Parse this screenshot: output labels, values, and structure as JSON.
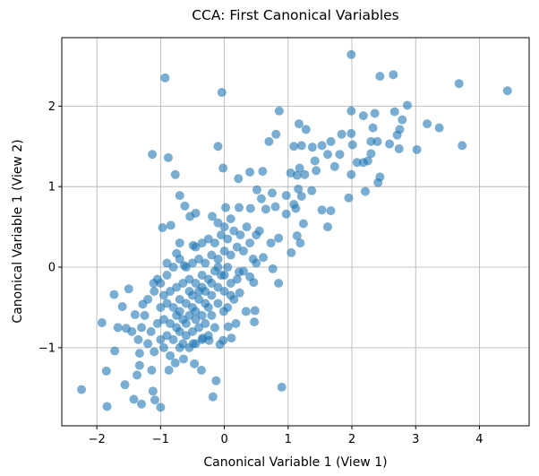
{
  "chart_data": {
    "type": "scatter",
    "title": "CCA: First Canonical Variables",
    "xlabel": "Canonical Variable 1 (View 1)",
    "ylabel": "Canonical Variable 1 (View 2)",
    "xlim": [
      -2.55,
      4.78
    ],
    "ylim": [
      -1.97,
      2.85
    ],
    "xticks": [
      -2,
      -1,
      0,
      1,
      2,
      3,
      4
    ],
    "yticks": [
      -1,
      0,
      1,
      2
    ],
    "grid": true,
    "marker_color": "#1f77b4",
    "marker_alpha": 0.6,
    "points": [
      [
        1.99,
        2.64
      ],
      [
        -0.93,
        2.35
      ],
      [
        -0.04,
        2.17
      ],
      [
        2.44,
        2.37
      ],
      [
        2.65,
        2.39
      ],
      [
        3.68,
        2.28
      ],
      [
        4.44,
        2.19
      ],
      [
        2.87,
        2.01
      ],
      [
        0.86,
        1.94
      ],
      [
        1.99,
        1.94
      ],
      [
        2.18,
        1.88
      ],
      [
        2.36,
        1.91
      ],
      [
        2.67,
        1.93
      ],
      [
        2.79,
        1.83
      ],
      [
        3.18,
        1.78
      ],
      [
        3.37,
        1.73
      ],
      [
        3.73,
        1.51
      ],
      [
        3.02,
        1.46
      ],
      [
        1.17,
        1.78
      ],
      [
        1.28,
        1.71
      ],
      [
        0.81,
        1.65
      ],
      [
        0.7,
        1.56
      ],
      [
        -0.1,
        1.5
      ],
      [
        -1.13,
        1.4
      ],
      [
        -0.88,
        1.36
      ],
      [
        -0.02,
        1.23
      ],
      [
        -0.77,
        1.15
      ],
      [
        0.22,
        1.1
      ],
      [
        0.4,
        1.18
      ],
      [
        0.6,
        1.19
      ],
      [
        1.09,
        1.5
      ],
      [
        1.21,
        1.51
      ],
      [
        1.38,
        1.49
      ],
      [
        1.53,
        1.51
      ],
      [
        1.67,
        1.56
      ],
      [
        1.84,
        1.65
      ],
      [
        1.99,
        1.66
      ],
      [
        2.01,
        1.52
      ],
      [
        2.33,
        1.73
      ],
      [
        2.3,
        1.56
      ],
      [
        2.4,
        1.56
      ],
      [
        2.59,
        1.53
      ],
      [
        2.74,
        1.47
      ],
      [
        2.71,
        1.64
      ],
      [
        2.75,
        1.71
      ],
      [
        1.62,
        1.4
      ],
      [
        1.81,
        1.4
      ],
      [
        1.73,
        1.25
      ],
      [
        1.42,
        1.32
      ],
      [
        1.44,
        1.2
      ],
      [
        2.08,
        1.3
      ],
      [
        2.18,
        1.3
      ],
      [
        2.25,
        1.32
      ],
      [
        2.3,
        1.41
      ],
      [
        1.99,
        1.15
      ],
      [
        2.44,
        1.12
      ],
      [
        2.41,
        1.05
      ],
      [
        2.21,
        0.94
      ],
      [
        1.95,
        0.86
      ],
      [
        1.18,
        1.23
      ],
      [
        1.04,
        1.17
      ],
      [
        1.14,
        1.14
      ],
      [
        1.26,
        1.15
      ],
      [
        1.16,
        0.97
      ],
      [
        1.21,
        0.88
      ],
      [
        1.37,
        0.95
      ],
      [
        0.97,
        0.89
      ],
      [
        0.75,
        0.92
      ],
      [
        0.51,
        0.96
      ],
      [
        0.58,
        0.85
      ],
      [
        0.8,
        0.75
      ],
      [
        1.09,
        0.78
      ],
      [
        1.12,
        0.73
      ],
      [
        0.97,
        0.66
      ],
      [
        1.53,
        0.71
      ],
      [
        1.67,
        0.7
      ],
      [
        1.62,
        0.5
      ],
      [
        1.24,
        0.54
      ],
      [
        1.14,
        0.39
      ],
      [
        1.19,
        0.3
      ],
      [
        1.05,
        0.18
      ],
      [
        0.85,
        0.36
      ],
      [
        0.73,
        0.3
      ],
      [
        0.61,
        0.12
      ],
      [
        0.76,
        -0.02
      ],
      [
        0.85,
        -0.2
      ],
      [
        0.46,
        -0.19
      ],
      [
        -0.7,
        0.89
      ],
      [
        -0.62,
        0.76
      ],
      [
        -0.54,
        0.63
      ],
      [
        -0.45,
        0.67
      ],
      [
        -0.97,
        0.49
      ],
      [
        -0.84,
        0.52
      ],
      [
        -0.19,
        0.63
      ],
      [
        0.02,
        0.74
      ],
      [
        0.23,
        0.74
      ],
      [
        0.41,
        0.73
      ],
      [
        0.65,
        0.72
      ],
      [
        -0.7,
        0.3
      ],
      [
        -0.49,
        0.27
      ],
      [
        -0.75,
        0.17
      ],
      [
        -0.63,
        0.02
      ],
      [
        -1.5,
        -0.27
      ],
      [
        -1.73,
        -0.34
      ],
      [
        -1.11,
        -0.2
      ],
      [
        -1.6,
        -0.49
      ],
      [
        -1.92,
        -0.69
      ],
      [
        -1.67,
        -0.75
      ],
      [
        -1.54,
        -0.76
      ],
      [
        -1.28,
        -0.46
      ],
      [
        -1.4,
        -0.59
      ],
      [
        -1.72,
        -1.04
      ],
      [
        -1.33,
        -1.07
      ],
      [
        -1.85,
        -1.29
      ],
      [
        -1.37,
        -1.34
      ],
      [
        -1.33,
        -1.22
      ],
      [
        -1.14,
        -1.28
      ],
      [
        -1.56,
        -1.46
      ],
      [
        -2.24,
        -1.52
      ],
      [
        -1.84,
        -1.73
      ],
      [
        -1.42,
        -1.64
      ],
      [
        -1.3,
        -1.7
      ],
      [
        -1.12,
        -1.54
      ],
      [
        -1.09,
        -1.65
      ],
      [
        -1.0,
        -1.74
      ],
      [
        -0.87,
        -1.28
      ],
      [
        -0.77,
        -1.19
      ],
      [
        -0.64,
        -1.14
      ],
      [
        -0.47,
        -1.2
      ],
      [
        -0.36,
        -1.28
      ],
      [
        -0.13,
        -1.41
      ],
      [
        -0.18,
        -1.61
      ],
      [
        0.9,
        -1.49
      ],
      [
        0.34,
        -0.55
      ],
      [
        0.48,
        -0.54
      ],
      [
        0.47,
        -0.68
      ],
      [
        0.18,
        -0.7
      ],
      [
        0.11,
        -0.88
      ],
      [
        -0.02,
        -0.91
      ],
      [
        -0.07,
        -0.96
      ],
      [
        0.06,
        -0.74
      ],
      [
        -0.01,
        -0.55
      ],
      [
        0.24,
        -0.32
      ],
      [
        0.1,
        -0.35
      ],
      [
        0.4,
        -0.12
      ],
      [
        0.23,
        -0.06
      ],
      [
        0.5,
        0.05
      ],
      [
        -0.24,
        -0.91
      ],
      [
        -0.34,
        -0.88
      ],
      [
        -0.49,
        -0.95
      ],
      [
        -1.0,
        -0.9
      ],
      [
        -0.9,
        -0.85
      ],
      [
        -0.8,
        -0.9
      ],
      [
        -0.7,
        -0.8
      ],
      [
        -0.6,
        -0.85
      ],
      [
        -0.5,
        -0.8
      ],
      [
        -0.4,
        -0.75
      ],
      [
        -0.3,
        -0.7
      ],
      [
        -1.05,
        -0.7
      ],
      [
        -0.95,
        -0.65
      ],
      [
        -0.85,
        -0.7
      ],
      [
        -0.75,
        -0.6
      ],
      [
        -0.65,
        -0.65
      ],
      [
        -0.55,
        -0.6
      ],
      [
        -0.45,
        -0.55
      ],
      [
        -0.35,
        -0.6
      ],
      [
        -0.25,
        -0.5
      ],
      [
        -1.0,
        -0.5
      ],
      [
        -0.9,
        -0.45
      ],
      [
        -0.8,
        -0.5
      ],
      [
        -0.7,
        -0.4
      ],
      [
        -0.6,
        -0.45
      ],
      [
        -0.5,
        -0.35
      ],
      [
        -0.4,
        -0.4
      ],
      [
        -0.3,
        -0.3
      ],
      [
        -0.2,
        -0.35
      ],
      [
        -0.1,
        -0.25
      ],
      [
        -0.85,
        -0.3
      ],
      [
        -0.75,
        -0.25
      ],
      [
        -0.65,
        -0.2
      ],
      [
        -0.55,
        -0.15
      ],
      [
        -0.45,
        -0.2
      ],
      [
        -0.35,
        -0.1
      ],
      [
        -0.25,
        -0.15
      ],
      [
        -0.15,
        -0.05
      ],
      [
        -0.05,
        -0.1
      ],
      [
        0.05,
        0.0
      ],
      [
        -0.6,
        0.0
      ],
      [
        -0.5,
        0.05
      ],
      [
        -0.4,
        0.1
      ],
      [
        -0.3,
        0.05
      ],
      [
        -0.2,
        0.15
      ],
      [
        -0.1,
        0.1
      ],
      [
        0.0,
        0.2
      ],
      [
        0.1,
        0.15
      ],
      [
        0.2,
        0.25
      ],
      [
        -0.45,
        0.25
      ],
      [
        -0.35,
        0.3
      ],
      [
        -0.25,
        0.35
      ],
      [
        -0.15,
        0.3
      ],
      [
        -0.05,
        0.4
      ],
      [
        0.05,
        0.35
      ],
      [
        0.15,
        0.45
      ],
      [
        0.25,
        0.4
      ],
      [
        0.35,
        0.5
      ],
      [
        -0.1,
        0.55
      ],
      [
        0.0,
        0.5
      ],
      [
        0.1,
        0.6
      ],
      [
        0.3,
        0.2
      ],
      [
        0.4,
        0.3
      ],
      [
        0.5,
        0.4
      ],
      [
        0.55,
        0.45
      ],
      [
        0.45,
        0.1
      ],
      [
        0.3,
        -0.05
      ],
      [
        0.2,
        -0.15
      ],
      [
        0.1,
        -0.2
      ],
      [
        0.0,
        -0.3
      ],
      [
        -0.1,
        -0.45
      ],
      [
        -0.2,
        -0.6
      ],
      [
        0.15,
        -0.4
      ],
      [
        0.05,
        -0.5
      ],
      [
        -0.15,
        -0.75
      ],
      [
        -0.25,
        -0.85
      ],
      [
        -1.15,
        -0.8
      ],
      [
        -1.2,
        -0.95
      ],
      [
        -1.1,
        -1.05
      ],
      [
        -0.95,
        -1.0
      ],
      [
        -0.85,
        -1.1
      ],
      [
        -0.7,
        -1.0
      ],
      [
        -0.55,
        -1.0
      ],
      [
        -0.45,
        -0.95
      ],
      [
        -0.35,
        -0.9
      ],
      [
        -1.25,
        -0.6
      ],
      [
        -1.3,
        -0.75
      ],
      [
        -1.35,
        -0.9
      ],
      [
        -1.45,
        -0.8
      ],
      [
        -1.2,
        -0.4
      ],
      [
        -1.1,
        -0.3
      ],
      [
        -1.0,
        -0.2
      ],
      [
        -0.9,
        -0.1
      ],
      [
        -0.8,
        0.0
      ],
      [
        -0.7,
        0.1
      ],
      [
        -0.9,
        0.05
      ],
      [
        -0.65,
        -0.95
      ],
      [
        -0.75,
        -0.75
      ],
      [
        -0.6,
        -0.7
      ],
      [
        -0.5,
        -0.5
      ],
      [
        -0.4,
        -0.3
      ],
      [
        -0.3,
        -0.45
      ],
      [
        -0.2,
        -0.2
      ],
      [
        -0.1,
        0.0
      ],
      [
        0.0,
        -0.1
      ],
      [
        -0.7,
        -0.55
      ],
      [
        -0.55,
        -0.3
      ],
      [
        -0.45,
        -0.65
      ],
      [
        -0.35,
        -0.25
      ],
      [
        -0.95,
        -0.35
      ],
      [
        -1.05,
        -0.15
      ]
    ]
  }
}
